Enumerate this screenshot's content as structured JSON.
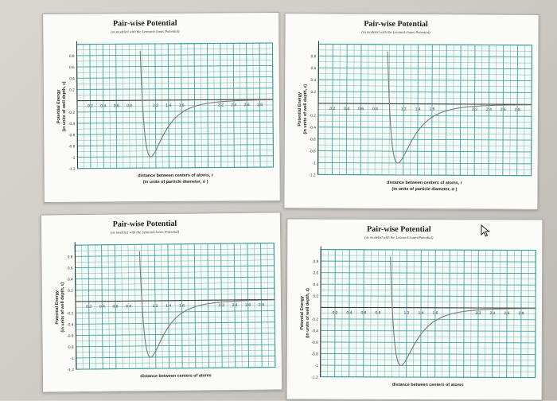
{
  "chart_data": [
    {
      "type": "line",
      "title": "Pair-wise Potential",
      "subtitle": "(as modeled with the Lennard-Jones Potential)",
      "xlabel": "distance between centers of atoms, r",
      "xlabel2": "(in units of particle diameter, σ )",
      "ylabel": "Potential Energy",
      "ylabel2": "(in units of well depth, ε)",
      "xlim": [
        0,
        3
      ],
      "ylim": [
        -1.2,
        1
      ],
      "x_ticks": [
        0.2,
        0.4,
        0.6,
        0.8,
        1.2,
        1.4,
        1.6,
        2.2,
        2.4,
        2.6,
        2.8
      ],
      "x_tick_labels": [
        "0.2",
        "0.4",
        "0.6",
        "0.8",
        "1.2",
        "1.4",
        "1.6",
        "2.2",
        "2.4",
        "2.6",
        "2.8"
      ],
      "y_ticks": [
        0.8,
        0.6,
        0.4,
        0.2,
        -0.2,
        -0.4,
        -0.6,
        -0.8,
        -1,
        -1.2
      ],
      "y_tick_labels": [
        "0.8",
        "0.6",
        "0.4",
        "0.2",
        "-0.2",
        "-0.4",
        "-0.6",
        "-0.8",
        "-1",
        "-1.2"
      ],
      "grid": true,
      "function": "LJ: 4(r^-12 - r^-6)",
      "curve_color": "#7a7a7a",
      "grid_color": "#2f9c9a"
    },
    {
      "type": "line",
      "title": "Pair-wise Potential",
      "subtitle": "(as modeled with the Lennard-Jones Potential)",
      "xlabel": "distance between centers of atoms, r",
      "xlabel2": "(in units of particle diameter, σ )",
      "ylabel": "Potential Energy",
      "ylabel2": "(in units of well depth, ε)",
      "xlim": [
        0,
        3
      ],
      "ylim": [
        -1.2,
        1
      ],
      "x_ticks": [
        0.2,
        0.4,
        0.6,
        0.8,
        1.2,
        1.4,
        1.6,
        2.2,
        2.4,
        2.6,
        2.8
      ],
      "x_tick_labels": [
        "0.2",
        "0.4",
        "0.6",
        "0.8",
        "1.2",
        "1.4",
        "1.6",
        "2.2",
        "2.4",
        "2.6",
        "2.8"
      ],
      "y_ticks": [
        0.8,
        0.6,
        0.4,
        0.2,
        -0.2,
        -0.4,
        -0.6,
        -0.8,
        -1,
        -1.2
      ],
      "y_tick_labels": [
        "0.8",
        "0.6",
        "0.4",
        "0.2",
        "-0.2",
        "-0.4",
        "-0.6",
        "-0.8",
        "-1",
        "-1.2"
      ],
      "grid": true,
      "function": "LJ: 4(r^-12 - r^-6)",
      "curve_color": "#7a7a7a",
      "grid_color": "#2f9c9a"
    },
    {
      "type": "line",
      "title": "Pair-wise Potential",
      "subtitle": "(as modeled with the Lennard-Jones Potential)",
      "xlabel": "distance between centers of atoms",
      "xlabel2": "",
      "ylabel": "Potential Energy",
      "ylabel2": "(in units of well depth, ε)",
      "xlim": [
        0,
        3
      ],
      "ylim": [
        -1.2,
        1
      ],
      "x_ticks": [
        0.2,
        0.4,
        0.6,
        0.8,
        1.2,
        1.4,
        1.6,
        2.2,
        2.4,
        2.6,
        2.8
      ],
      "x_tick_labels": [
        "0.2",
        "0.4",
        "0.6",
        "0.8",
        "1.2",
        "1.4",
        "1.6",
        "2.2",
        "2.4",
        "2.6",
        "2.8"
      ],
      "y_ticks": [
        0.8,
        0.6,
        0.4,
        0.2,
        -0.2,
        -0.4,
        -0.6,
        -0.8,
        -1,
        -1.2
      ],
      "y_tick_labels": [
        "0.8",
        "0.6",
        "0.4",
        "0.2",
        "-0.2",
        "-0.4",
        "-0.6",
        "-0.8",
        "-1",
        "-1.2"
      ],
      "grid": true,
      "function": "LJ: 4(r^-12 - r^-6)",
      "curve_color": "#7a7a7a",
      "grid_color": "#2f9c9a"
    },
    {
      "type": "line",
      "title": "Pair-wise Potential",
      "subtitle": "(as modeled with the Lennard-Jones Potential)",
      "xlabel": "distance between centers of atoms",
      "xlabel2": "",
      "ylabel": "Potential Energy",
      "ylabel2": "(in units of well depth, ε)",
      "xlim": [
        0,
        3
      ],
      "ylim": [
        -1.2,
        1
      ],
      "x_ticks": [
        0.2,
        0.4,
        0.6,
        0.8,
        1.2,
        1.4,
        1.6,
        2.2,
        2.4,
        2.6,
        2.8
      ],
      "x_tick_labels": [
        "0.2",
        "0.4",
        "0.6",
        "0.8",
        "1.2",
        "1.4",
        "1.6",
        "2.2",
        "2.4",
        "2.6",
        "2.8"
      ],
      "y_ticks": [
        0.8,
        0.6,
        0.4,
        0.2,
        -0.2,
        -0.4,
        -0.6,
        -0.8,
        -1,
        -1.2
      ],
      "y_tick_labels": [
        "0.8",
        "0.6",
        "0.4",
        "0.2",
        "-0.2",
        "-0.4",
        "-0.6",
        "-0.8",
        "-1",
        "-1.2"
      ],
      "grid": true,
      "function": "LJ: 4(r^-12 - r^-6)",
      "curve_color": "#7a7a7a",
      "grid_color": "#2f9c9a"
    }
  ],
  "cursor_icon": "pointer-arrow-icon"
}
